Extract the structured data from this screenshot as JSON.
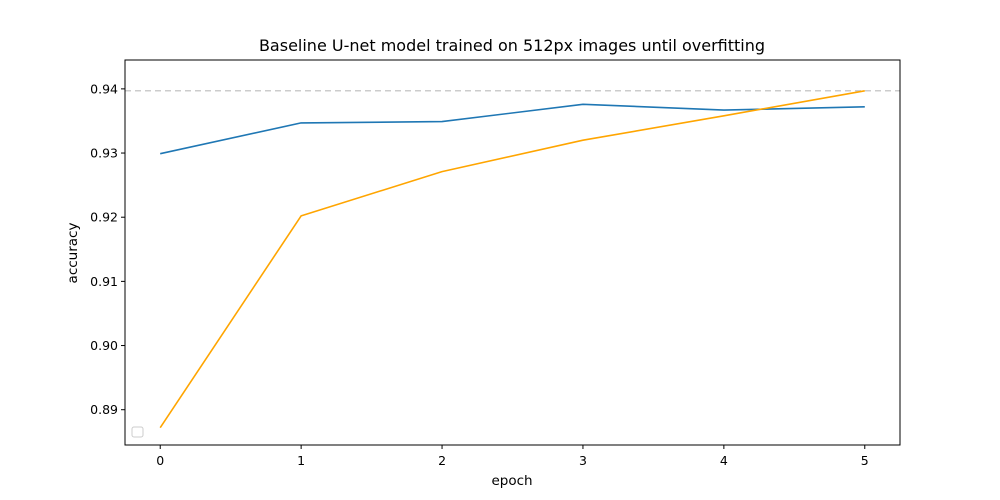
{
  "chart_data": {
    "type": "line",
    "title": "Baseline U-net model trained on 512px images until overfitting",
    "xlabel": "epoch",
    "ylabel": "accuracy",
    "x": [
      0,
      1,
      2,
      3,
      4,
      5
    ],
    "x_ticks": [
      "0",
      "1",
      "2",
      "3",
      "4",
      "5"
    ],
    "y_ticks": [
      "0.89",
      "0.90",
      "0.91",
      "0.92",
      "0.93",
      "0.94"
    ],
    "xlim": [
      -0.25,
      5.25
    ],
    "ylim": [
      0.8845,
      0.9445
    ],
    "grid": false,
    "legend": "lower-left (empty)",
    "series": [
      {
        "values": [
          0.9299,
          0.9347,
          0.9349,
          0.9376,
          0.9367,
          0.9372
        ],
        "color": "#1f77b4"
      },
      {
        "values": [
          0.8872,
          0.9202,
          0.9271,
          0.932,
          0.9358,
          0.9397
        ],
        "color": "#ffa500"
      }
    ],
    "reference_line": {
      "y": 0.9397,
      "color": "#cccccc",
      "style": "dashed"
    }
  }
}
